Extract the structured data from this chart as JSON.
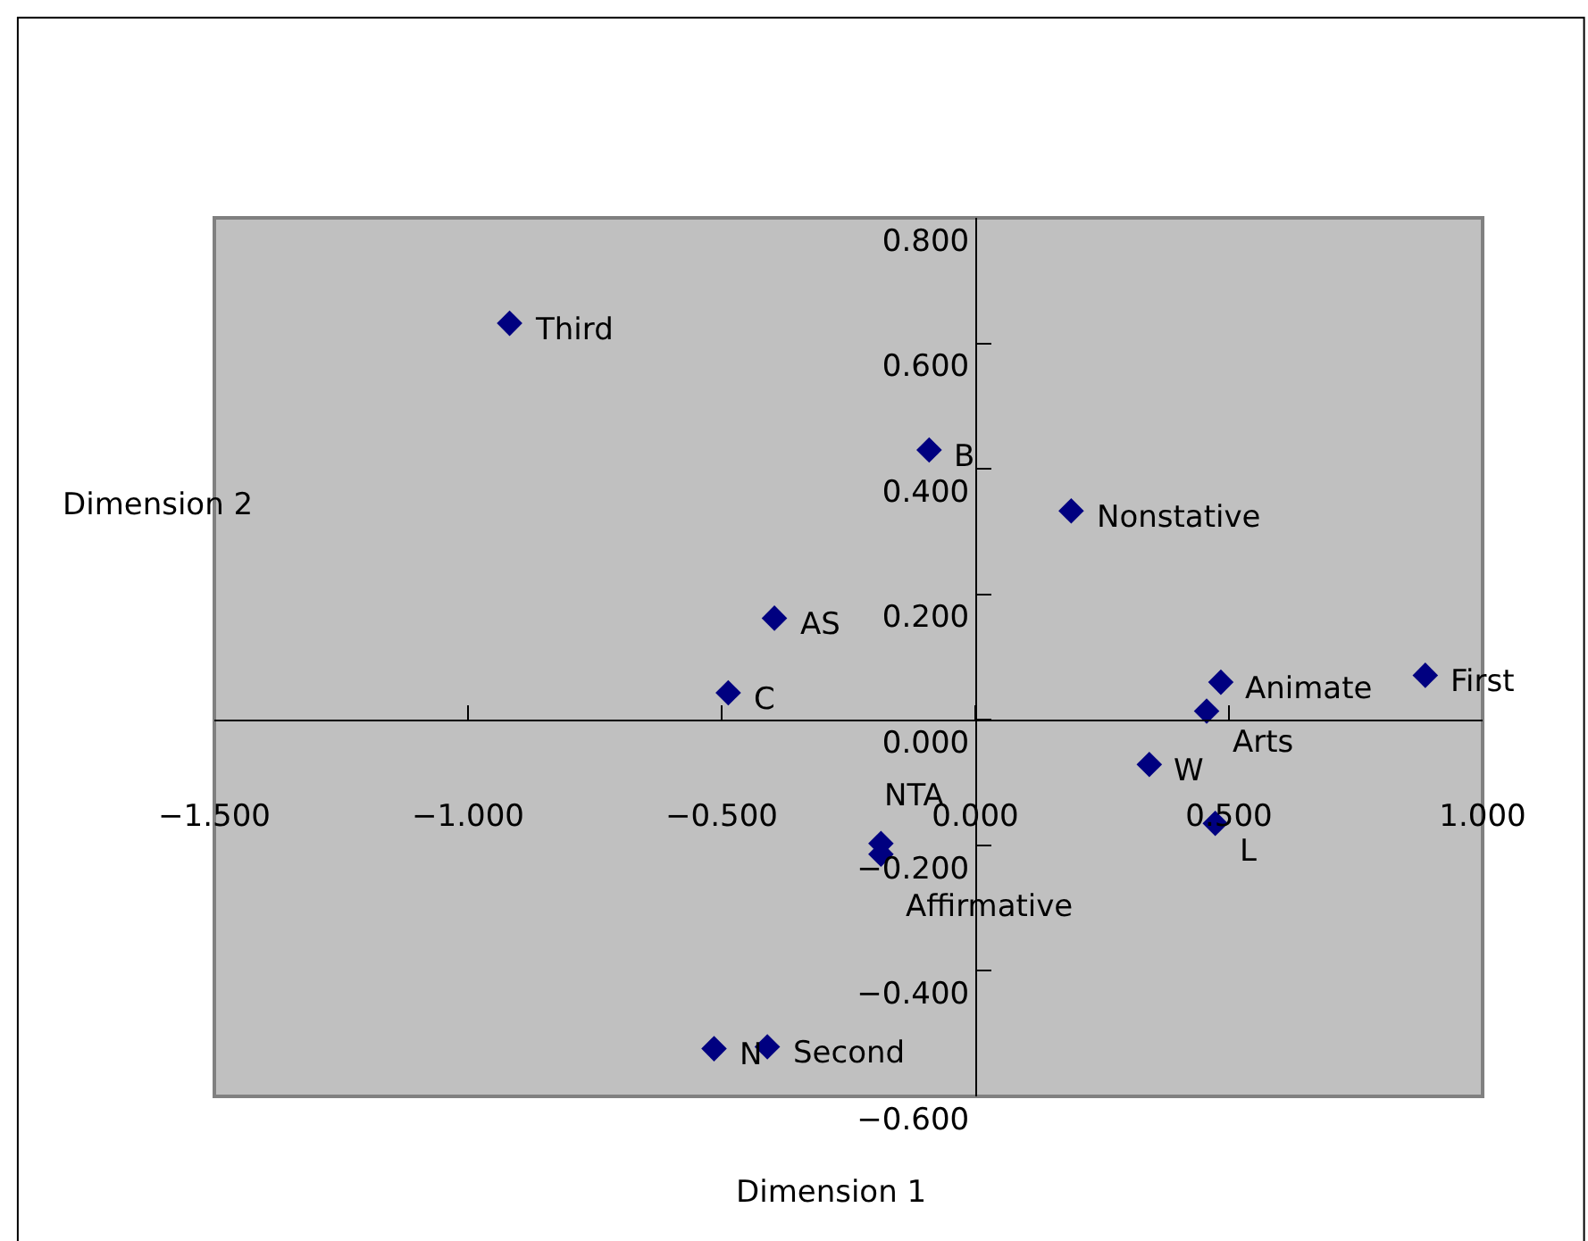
{
  "chart_data": {
    "type": "scatter",
    "xlabel": "Dimension 1",
    "ylabel": "Dimension 2",
    "x": [
      -0.918,
      -0.091,
      0.189,
      -0.396,
      -0.487,
      0.484,
      0.887,
      0.456,
      0.343,
      0.473,
      -0.186,
      -0.186,
      -0.515,
      -0.41
    ],
    "series": [
      {
        "color": "#000080",
        "values": [
          0.632,
          0.43,
          0.333,
          0.162,
          0.043,
          0.06,
          0.071,
          0.014,
          -0.071,
          -0.165,
          -0.197,
          -0.214,
          -0.524,
          -0.521
        ]
      }
    ],
    "annotations": [
      {
        "text": "Third",
        "x": -0.918,
        "y": 0.632
      },
      {
        "text": "B",
        "x": -0.091,
        "y": 0.43
      },
      {
        "text": "Nonstative",
        "x": 0.189,
        "y": 0.333
      },
      {
        "text": "AS",
        "x": -0.396,
        "y": 0.162
      },
      {
        "text": "C",
        "x": -0.487,
        "y": 0.043
      },
      {
        "text": "Animate",
        "x": 0.484,
        "y": 0.06
      },
      {
        "text": "First",
        "x": 0.887,
        "y": 0.071
      },
      {
        "text": "Arts",
        "x": 0.456,
        "y": 0.014
      },
      {
        "text": "W",
        "x": 0.343,
        "y": -0.071
      },
      {
        "text": "L",
        "x": 0.473,
        "y": -0.165
      },
      {
        "text": "NTA",
        "x": -0.186,
        "y": -0.197
      },
      {
        "text": "Affirmative",
        "x": -0.186,
        "y": -0.214
      },
      {
        "text": "N",
        "x": -0.515,
        "y": -0.524
      },
      {
        "text": "Second",
        "x": -0.41,
        "y": -0.521
      }
    ],
    "xlim": [
      -1.5,
      1.0
    ],
    "xticks": [
      {
        "value": -1.5,
        "label": "−1.500"
      },
      {
        "value": -1.0,
        "label": "−1.000"
      },
      {
        "value": -0.5,
        "label": "−0.500"
      },
      {
        "value": 0,
        "label": "0.000"
      },
      {
        "value": 0.5,
        "label": "0.500"
      },
      {
        "value": 1.0,
        "label": "1.000"
      }
    ],
    "ylim": [
      -0.6,
      0.8
    ],
    "yticks": [
      {
        "value": -0.6,
        "label": "−0.600"
      },
      {
        "value": -0.4,
        "label": "−0.400"
      },
      {
        "value": -0.2,
        "label": "−0.200"
      },
      {
        "value": 0,
        "label": "0.000"
      },
      {
        "value": 0.2,
        "label": "0.200"
      },
      {
        "value": 0.4,
        "label": "0.400"
      },
      {
        "value": 0.6,
        "label": "0.600"
      },
      {
        "value": 0.8,
        "label": "0.800"
      }
    ],
    "marker": "diamond",
    "grid": false
  }
}
